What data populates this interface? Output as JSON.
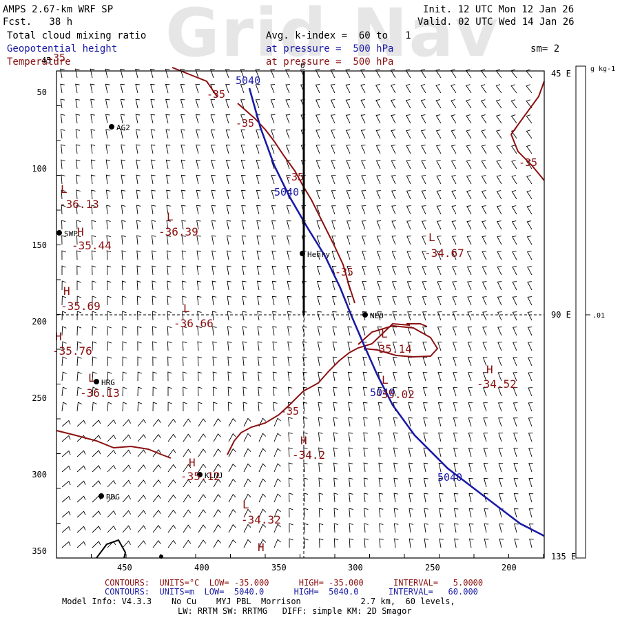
{
  "header": {
    "model_title": "AMPS 2.67-km WRF SP",
    "forecast": "Fcst.   38 h",
    "init": "Init. 12 UTC Mon 12 Jan 26",
    "valid": "Valid. 02 UTC Wed 14 Jan 26",
    "watermark": "Grid Nav",
    "field_1": "Total cloud mixing ratio",
    "field_2": "Geopotential height",
    "field_3": "Temperature",
    "avg_k": "Avg. k-index =  60 to   1",
    "pressure_1": "at pressure =  500 hPa",
    "pressure_2": "at pressure =  500 hPa",
    "smoothing": "sm= 2"
  },
  "colorbar": {
    "unit": "g kg-1",
    "tick_value": ".01"
  },
  "axes": {
    "x_ticks": [
      "450",
      "400",
      "350",
      "300",
      "250",
      "200"
    ],
    "y_ticks": [
      "50",
      "100",
      "150",
      "200",
      "250",
      "300",
      "350"
    ],
    "top_mark": "0",
    "corner_mark": "45",
    "right_labels": [
      "45 E",
      "90 E",
      "135 E"
    ]
  },
  "stations": [
    {
      "code": "AG2"
    },
    {
      "code": "SWP"
    },
    {
      "code": "Henry"
    },
    {
      "code": "NEO"
    },
    {
      "code": "HRG"
    },
    {
      "code": "KLNJ"
    },
    {
      "code": "RDG"
    }
  ],
  "contour_labels": {
    "height": [
      "5040",
      "5040",
      "5040",
      "5040"
    ],
    "temperature": [
      "-35",
      "-35",
      "-35",
      "-35",
      "-35",
      "-35",
      "-35"
    ]
  },
  "extrema": [
    {
      "kind": "L",
      "value": "-36.13"
    },
    {
      "kind": "L",
      "value": "-36.39"
    },
    {
      "kind": "H",
      "value": "-35.44"
    },
    {
      "kind": "L",
      "value": "-34.67"
    },
    {
      "kind": "H",
      "value": "-35.69"
    },
    {
      "kind": "L",
      "value": "-36.66"
    },
    {
      "kind": "H",
      "value": "-35.76"
    },
    {
      "kind": "L",
      "value": "-35.14"
    },
    {
      "kind": "H",
      "value": "-34.52"
    },
    {
      "kind": "L",
      "value": "-36.13"
    },
    {
      "kind": "L",
      "value": "-35.02"
    },
    {
      "kind": "H",
      "value": "-34.2"
    },
    {
      "kind": "H",
      "value": "-35.12"
    },
    {
      "kind": "L",
      "value": "-34.32"
    },
    {
      "kind": "H",
      "value": ""
    }
  ],
  "footer": {
    "c1_label": "CONTOURS:",
    "c1_units": "UNITS=°C",
    "c1_low": "LOW= -35.000",
    "c1_high": "HIGH= -35.000",
    "c1_interval": "INTERVAL=   5.0000",
    "c2_label": "CONTOURS:",
    "c2_units": "UNITS=m",
    "c2_low": "LOW=  5040.0",
    "c2_high": "HIGH=  5040.0",
    "c2_interval": "INTERVAL=   60.000",
    "model_info": "Model Info: V4.3.3    No Cu    MYJ PBL  Morrison            2.7 km,  60 levels,",
    "model_info_2": "LW: RRTM SW: RRTMG   DIFF: simple KM: 2D Smagor"
  },
  "colors": {
    "height_contour": "#1a1aa6",
    "temperature_contour": "#8b1010",
    "text": "#000000"
  }
}
